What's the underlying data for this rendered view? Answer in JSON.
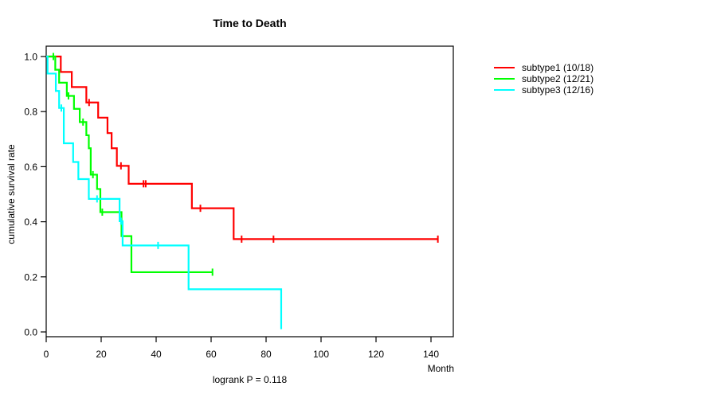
{
  "title": "Time to Death",
  "chart_data": {
    "type": "line",
    "variant": "kaplan-meier-step",
    "title": "Time to Death",
    "xlabel": "Month",
    "ylabel": "cumulative survival rate",
    "annotation": "logrank P = 0.118",
    "xlim": [
      0,
      148
    ],
    "ylim": [
      0.0,
      1.0
    ],
    "xticks": [
      0,
      20,
      40,
      60,
      80,
      100,
      120,
      140
    ],
    "yticks": [
      0.0,
      0.2,
      0.4,
      0.6,
      0.8,
      1.0
    ],
    "grid": false,
    "legend_position": "right-outside",
    "series": [
      {
        "name": "subtype1",
        "label": "subtype1 (10/18)",
        "color": "#ff0000",
        "points": [
          [
            0,
            1.0
          ],
          [
            5.3,
            0.944
          ],
          [
            9.3,
            0.889
          ],
          [
            14.6,
            0.833
          ],
          [
            18.9,
            0.778
          ],
          [
            22.3,
            0.722
          ],
          [
            23.8,
            0.667
          ],
          [
            25.7,
            0.603
          ],
          [
            30,
            0.538
          ],
          [
            53,
            0.449
          ],
          [
            68.2,
            0.337
          ]
        ],
        "end_month": 142.5,
        "censor_marks": [
          [
            15.6,
            0.833
          ],
          [
            27.2,
            0.603
          ],
          [
            35.4,
            0.538
          ],
          [
            36.2,
            0.538
          ],
          [
            56.1,
            0.449
          ],
          [
            71.1,
            0.337
          ],
          [
            82.7,
            0.337
          ],
          [
            142.5,
            0.337
          ]
        ]
      },
      {
        "name": "subtype2",
        "label": "subtype2 (12/21)",
        "color": "#00ff00",
        "points": [
          [
            0,
            1.0
          ],
          [
            3.3,
            0.952
          ],
          [
            4.7,
            0.905
          ],
          [
            7.5,
            0.857
          ],
          [
            10.1,
            0.81
          ],
          [
            12.2,
            0.762
          ],
          [
            14.6,
            0.714
          ],
          [
            15.5,
            0.667
          ],
          [
            16.2,
            0.571
          ],
          [
            18.5,
            0.519
          ],
          [
            19.7,
            0.435
          ],
          [
            27.4,
            0.348
          ],
          [
            31,
            0.217
          ]
        ],
        "end_month": 60.5,
        "censor_marks": [
          [
            2.6,
            1.0
          ],
          [
            8.1,
            0.857
          ],
          [
            13.4,
            0.762
          ],
          [
            17,
            0.571
          ],
          [
            20.4,
            0.435
          ],
          [
            60.5,
            0.217
          ]
        ]
      },
      {
        "name": "subtype3",
        "label": "subtype3 (12/16)",
        "color": "#00ffff",
        "points": [
          [
            0,
            1.0
          ],
          [
            0.5,
            0.938
          ],
          [
            3.5,
            0.875
          ],
          [
            4.7,
            0.813
          ],
          [
            6.4,
            0.685
          ],
          [
            9.8,
            0.617
          ],
          [
            11.7,
            0.555
          ],
          [
            15.5,
            0.483
          ],
          [
            26.7,
            0.402
          ],
          [
            27.8,
            0.314
          ],
          [
            51.8,
            0.155
          ],
          [
            85.5,
            0.01
          ]
        ],
        "end_month": 85.5,
        "censor_marks": [
          [
            5.5,
            0.813
          ],
          [
            18.5,
            0.483
          ],
          [
            27.2,
            0.402
          ],
          [
            40.7,
            0.314
          ]
        ]
      }
    ]
  }
}
